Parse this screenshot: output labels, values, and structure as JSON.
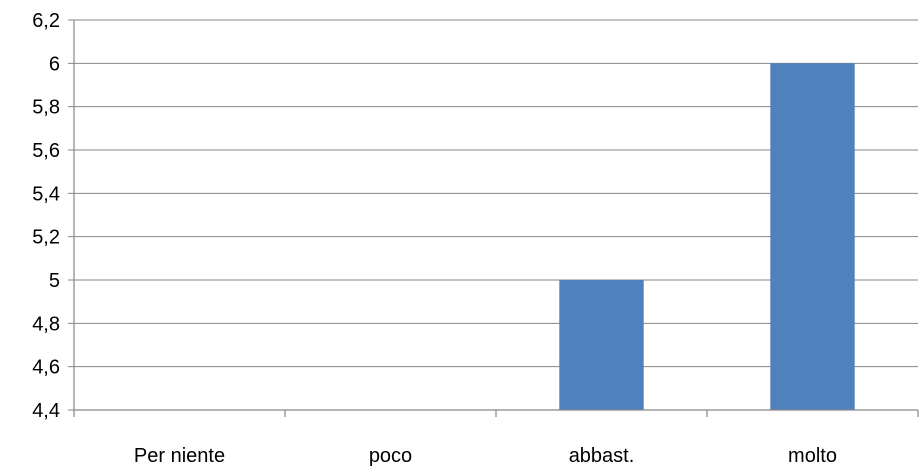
{
  "chart_data": {
    "type": "bar",
    "categories": [
      "Per niente",
      "poco",
      "abbast.",
      "molto"
    ],
    "values": [
      null,
      null,
      5,
      6
    ],
    "title": "",
    "xlabel": "",
    "ylabel": "",
    "ylim": [
      4.4,
      6.2
    ],
    "yticks": [
      "4,4",
      "4,6",
      "4,8",
      "5",
      "5,2",
      "5,4",
      "5,6",
      "5,8",
      "6",
      "6,2"
    ],
    "ytick_values": [
      4.4,
      4.6,
      4.8,
      5.0,
      5.2,
      5.4,
      5.6,
      5.8,
      6.0,
      6.2
    ],
    "grid": true,
    "legend": "none",
    "bar_color": "#4F81BD"
  }
}
